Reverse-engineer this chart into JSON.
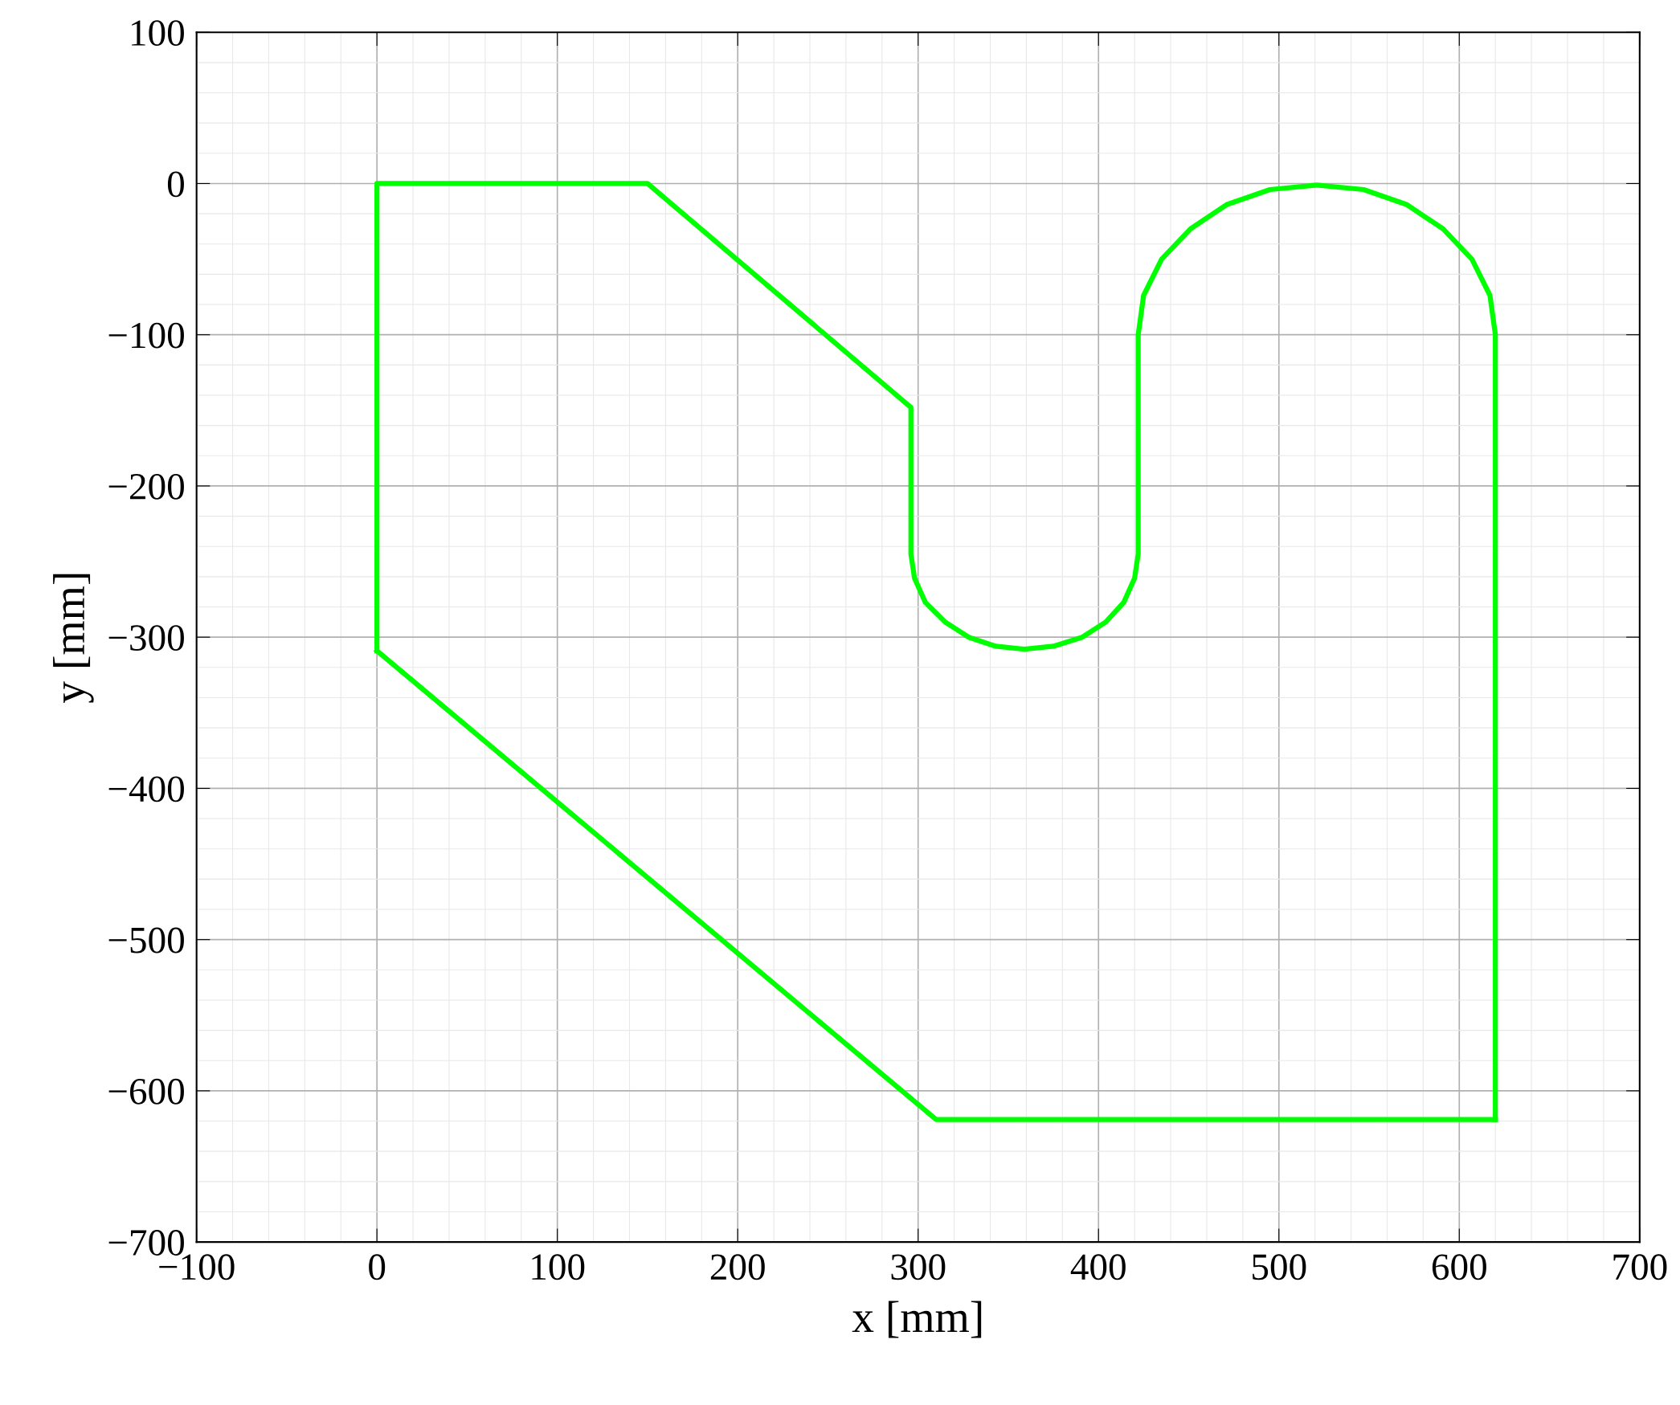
{
  "chart_data": {
    "type": "line",
    "xlabel": "x [mm]",
    "ylabel": "y [mm]",
    "series": [
      {
        "color": "#00ff00",
        "x": [
          0,
          0,
          150,
          296,
          296,
          298,
          304,
          315,
          328,
          343,
          359,
          375,
          391,
          404,
          414,
          420,
          422,
          422,
          425,
          435,
          451,
          471,
          495,
          521,
          547,
          571,
          591,
          607,
          617,
          620,
          620
        ],
        "values": [
          -309,
          0,
          0,
          -148,
          -245,
          -261,
          -277,
          -290,
          -300,
          -306,
          -308,
          -306,
          -300,
          -290,
          -277,
          -261,
          -245,
          -100,
          -74,
          -50,
          -30,
          -14,
          -4,
          -1,
          -4,
          -14,
          -30,
          -50,
          -74,
          -100,
          -619
        ]
      },
      {
        "color": "#00ff00",
        "x": [
          0,
          310,
          620
        ],
        "values": [
          -309,
          -619,
          -619
        ]
      }
    ],
    "xlim": [
      -100,
      700
    ],
    "ylim": [
      -700,
      100
    ],
    "xticks": [
      {
        "value": -100,
        "label": "−100"
      },
      0,
      100,
      200,
      300,
      400,
      500,
      600,
      700
    ],
    "yticks": [
      {
        "value": -700,
        "label": "−700"
      },
      {
        "value": -600,
        "label": "−600"
      },
      {
        "value": -500,
        "label": "−500"
      },
      {
        "value": -400,
        "label": "−400"
      },
      {
        "value": -300,
        "label": "−300"
      },
      {
        "value": -200,
        "label": "−200"
      },
      {
        "value": -100,
        "label": "−100"
      },
      0,
      100
    ],
    "grid": true,
    "marker": "none",
    "line_style": "solid",
    "legend": false
  }
}
